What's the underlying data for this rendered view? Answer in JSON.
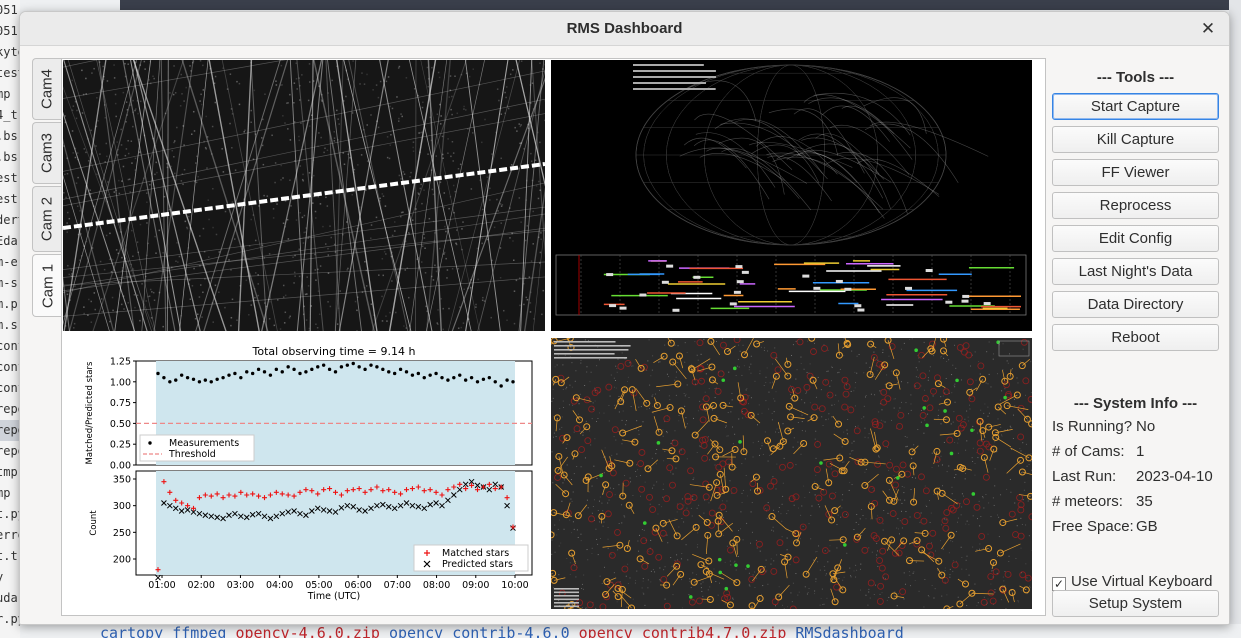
{
  "window": {
    "title": "RMS Dashboard",
    "close_glyph": "✕"
  },
  "tabs": [
    {
      "label": "Cam4",
      "active": false
    },
    {
      "label": "Cam3",
      "active": false
    },
    {
      "label": "Cam 2",
      "active": false
    },
    {
      "label": "Cam 1",
      "active": true
    }
  ],
  "tools": {
    "title": "--- Tools ---",
    "buttons": [
      "Start Capture",
      "Kill Capture",
      "FF Viewer",
      "Reprocess",
      "Edit Config",
      "Last Night's Data",
      "Data Directory",
      "Reboot"
    ]
  },
  "system_info": {
    "title": "--- System Info ---",
    "rows": [
      {
        "key": "Is Running?",
        "value": "No"
      },
      {
        "key": "# of Cams:",
        "value": "1"
      },
      {
        "key": "Last Run:",
        "value": "2023-04-10"
      },
      {
        "key": "# meteors:",
        "value": "35"
      },
      {
        "key": "Free Space:",
        "value": "GB"
      }
    ]
  },
  "virtual_keyboard": {
    "label": "Use Virtual Keyboard",
    "checked": true,
    "check_glyph": "✓"
  },
  "setup_button": "Setup System",
  "background": {
    "left_snippets": [
      "051",
      "051",
      "kyto",
      "test",
      "mp",
      "4_t",
      ".bs",
      ".bs",
      "est",
      "est",
      "dert",
      "Eda",
      "m-e",
      "m-s",
      "m.p",
      "m.s",
      "conf",
      "conf",
      "conf",
      "repo",
      "repo",
      "repo",
      "tmp",
      "mp",
      "t.py",
      "erro",
      "t.tr",
      "y",
      "uda.",
      "r.py"
    ],
    "bottom_line": [
      {
        "text": "cartopy  ffmpeg  ",
        "color": "blue"
      },
      {
        "text": "      opencv-4.6.0.zip  ",
        "color": "red"
      },
      {
        "text": "opencv_contrib-4.6.0  ",
        "color": "blue"
      },
      {
        "text": "opencv_contrib4.7.0.zip  ",
        "color": "red"
      },
      {
        "text": "RMSdashboard",
        "color": "blue"
      }
    ]
  },
  "chart_data": {
    "type": "scatter",
    "title": "Total observing time = 9.14 h",
    "top_panel": {
      "ylabel": "Matched/Predicted stars",
      "ylim": [
        0.0,
        1.25
      ],
      "yticks": [
        "0.00",
        "0.25",
        "0.50",
        "0.75",
        "1.00",
        "1.25"
      ],
      "threshold": 0.5,
      "legend": [
        "Measurements",
        "Threshold"
      ],
      "measurements": [
        1.1,
        1.05,
        1.0,
        1.02,
        1.08,
        1.05,
        1.03,
        1.0,
        1.02,
        1.0,
        1.03,
        1.05,
        1.08,
        1.1,
        1.05,
        1.12,
        1.1,
        1.15,
        1.12,
        1.08,
        1.15,
        1.12,
        1.18,
        1.15,
        1.1,
        1.12,
        1.15,
        1.18,
        1.2,
        1.15,
        1.12,
        1.18,
        1.2,
        1.22,
        1.18,
        1.15,
        1.2,
        1.18,
        1.15,
        1.12,
        1.1,
        1.15,
        1.12,
        1.08,
        1.1,
        1.05,
        1.08,
        1.1,
        1.05,
        1.02,
        1.05,
        1.08,
        1.02,
        1.05,
        1.0,
        1.03,
        1.05,
        1.0,
        0.95,
        1.02,
        1.0
      ]
    },
    "bottom_panel": {
      "ylabel": "Count",
      "xlabel": "Time (UTC)",
      "yticks": [
        "200",
        "250",
        "300",
        "350"
      ],
      "xticks": [
        "01:00",
        "02:00",
        "03:00",
        "04:00",
        "05:00",
        "06:00",
        "07:00",
        "08:00",
        "09:00",
        "10:00"
      ],
      "legend": [
        "Matched stars",
        "Predicted stars"
      ],
      "matched": [
        180,
        345,
        325,
        310,
        305,
        300,
        295,
        315,
        320,
        318,
        322,
        315,
        320,
        318,
        325,
        320,
        322,
        318,
        315,
        320,
        325,
        322,
        320,
        318,
        325,
        330,
        328,
        322,
        330,
        332,
        325,
        320,
        328,
        330,
        332,
        325,
        330,
        335,
        328,
        330,
        325,
        322,
        330,
        332,
        335,
        328,
        330,
        325,
        320,
        330,
        335,
        340,
        332,
        338,
        330,
        335,
        340,
        332,
        335,
        315,
        260
      ],
      "predicted": [
        165,
        305,
        300,
        295,
        290,
        292,
        288,
        285,
        282,
        280,
        278,
        276,
        282,
        285,
        280,
        278,
        283,
        285,
        280,
        276,
        280,
        285,
        288,
        290,
        285,
        282,
        290,
        295,
        292,
        290,
        288,
        296,
        300,
        298,
        292,
        290,
        295,
        300,
        302,
        298,
        295,
        300,
        305,
        300,
        298,
        295,
        302,
        305,
        300,
        310,
        320,
        330,
        340,
        345,
        338,
        335,
        330,
        340,
        335,
        300,
        258
      ]
    }
  }
}
